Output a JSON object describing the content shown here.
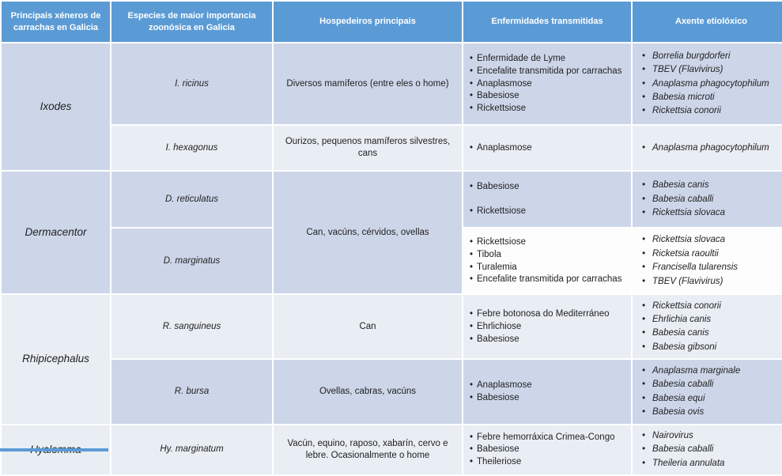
{
  "colors": {
    "header_bg": "#5b9bd5",
    "band_dark": "#cdd6e9",
    "band_light": "#e9edf4",
    "band_white": "#fdfdfe",
    "header_text": "#ffffff",
    "body_text": "#212121"
  },
  "table": {
    "headers": [
      "Principais xéneros de carrachas en Galicia",
      "Especies de maior importancia zoonósica en Galicia",
      "Hospedeiros principais",
      "Enfermidades transmitidas",
      "Axente etiolóxico"
    ],
    "genera": [
      {
        "name": "Ixodes",
        "species": [
          {
            "name": "I. ricinus",
            "hosts": "Diversos mamíferos (entre eles o home)",
            "diseases": [
              "Enfermidade de Lyme",
              "Encefalite transmitida por carrachas",
              "Anaplasmose",
              "Babesiose",
              "Rickettsiose"
            ],
            "agents": [
              "Borrelia burgdorferi",
              "TBEV (Flavivirus)",
              "Anaplasma phagocytophilum",
              "Babesia microti",
              "Rickettsia conorii"
            ]
          },
          {
            "name": "I. hexagonus",
            "hosts": "Ourizos, pequenos mamíferos silvestres, cans",
            "diseases": [
              "Anaplasmose"
            ],
            "agents": [
              "Anaplasma phagocytophilum"
            ]
          }
        ]
      },
      {
        "name": "Dermacentor",
        "hosts": "Can, vacúns, cérvidos, ovellas",
        "species": [
          {
            "name": "D. reticulatus",
            "diseases": [
              "Babesiose",
              "Rickettsiose"
            ],
            "agents": [
              "Babesia canis",
              "Babesia caballi",
              "Rickettsia slovaca"
            ]
          },
          {
            "name": "D. marginatus",
            "diseases": [
              "Rickettsiose",
              "Tibola",
              "Turalemia",
              "Encefalite transmitida por carrachas"
            ],
            "agents": [
              "Rickettsia slovaca",
              "Ricketsia raoultii",
              "Francisella tularensis",
              "TBEV (Flavivirus)"
            ]
          }
        ]
      },
      {
        "name": "Rhipicephalus",
        "species": [
          {
            "name": "R. sanguineus",
            "hosts": "Can",
            "diseases": [
              "Febre botonosa do Mediterráneo",
              "Ehrlichiose",
              "Babesiose"
            ],
            "agents": [
              "Rickettsia conorii",
              "Ehrlichia canis",
              "Babesia canis",
              "Babesia gibsoni"
            ]
          },
          {
            "name": "R. bursa",
            "hosts": "Ovellas, cabras, vacúns",
            "diseases": [
              "Anaplasmose",
              "Babesiose"
            ],
            "agents": [
              "Anaplasma marginale",
              "Babesia caballi",
              "Babesia equi",
              "Babesia ovis"
            ]
          }
        ]
      },
      {
        "name": "Hyalomma",
        "species": [
          {
            "name": "Hy. marginatum",
            "hosts": "Vacún, equino, raposo, xabarín, cervo e lebre. Ocasionalmente o home",
            "diseases": [
              "Febre hemorráxica Crimea-Congo",
              "Babesiose",
              "Theileriose"
            ],
            "agents": [
              "Nairovirus",
              "Babesia caballi",
              "Theileria annulata"
            ]
          }
        ]
      }
    ]
  }
}
